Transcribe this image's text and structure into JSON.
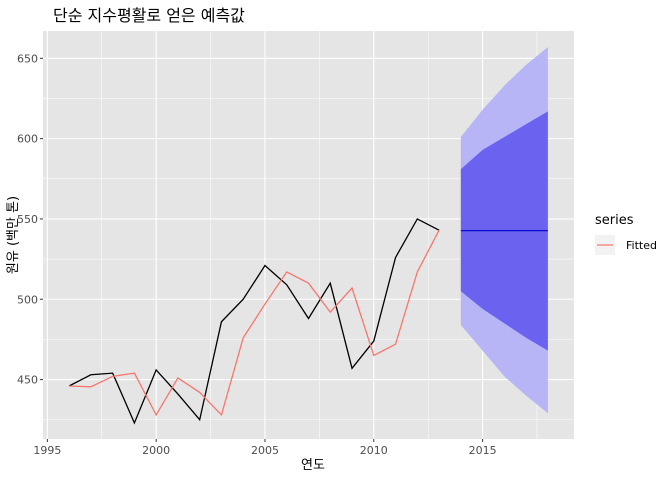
{
  "chart_data": {
    "type": "line",
    "title": "단순 지수평활로 얻은 예측값",
    "xlabel": "연도",
    "ylabel": "원유 (백만 톤)",
    "xlim": [
      1994.8,
      2019.2
    ],
    "ylim": [
      413,
      667
    ],
    "x_ticks": [
      1995,
      2000,
      2005,
      2010,
      2015
    ],
    "x_tick_labels": [
      "1995",
      "2000",
      "2005",
      "2010",
      "2015"
    ],
    "y_ticks": [
      450,
      500,
      550,
      600,
      650
    ],
    "y_tick_labels": [
      "450",
      "500",
      "550",
      "600",
      "650"
    ],
    "grid": true,
    "legend_placement": "right",
    "legend_title": "series",
    "colors": {
      "panel_bg": "#e5e5e5",
      "grid": "#ffffff",
      "observed": "#000000",
      "fitted": "#f8766d",
      "forecast_mean": "#0000cc",
      "pi80": "#6b63f0",
      "pi95": "#b7b5f6"
    },
    "series": [
      {
        "role": "observed",
        "x": [
          1996,
          1997,
          1998,
          1999,
          2000,
          2001,
          2002,
          2003,
          2004,
          2005,
          2006,
          2007,
          2008,
          2009,
          2010,
          2011,
          2012,
          2013
        ],
        "values": [
          446,
          453,
          454,
          423,
          456,
          441,
          425,
          486,
          500,
          521,
          509,
          488,
          510,
          457,
          474,
          526,
          550,
          543
        ]
      },
      {
        "name": "Fitted",
        "role": "fitted",
        "x": [
          1996,
          1997,
          1998,
          1999,
          2000,
          2001,
          2002,
          2003,
          2004,
          2005,
          2006,
          2007,
          2008,
          2009,
          2010,
          2011,
          2012,
          2013
        ],
        "values": [
          446,
          445.5,
          452,
          454,
          428,
          451,
          442,
          428,
          476,
          497,
          517,
          510,
          492,
          507,
          465,
          472,
          517,
          543
        ]
      }
    ],
    "forecast": {
      "x": [
        2014,
        2015,
        2016,
        2017,
        2018
      ],
      "mean": [
        542.7,
        542.7,
        542.7,
        542.7,
        542.7
      ],
      "lo80": [
        505,
        494,
        485,
        476,
        468
      ],
      "hi80": [
        581,
        593,
        601,
        609,
        617
      ],
      "lo95": [
        484,
        468,
        452,
        440,
        429
      ],
      "hi95": [
        601,
        618,
        633,
        646,
        657
      ]
    }
  }
}
